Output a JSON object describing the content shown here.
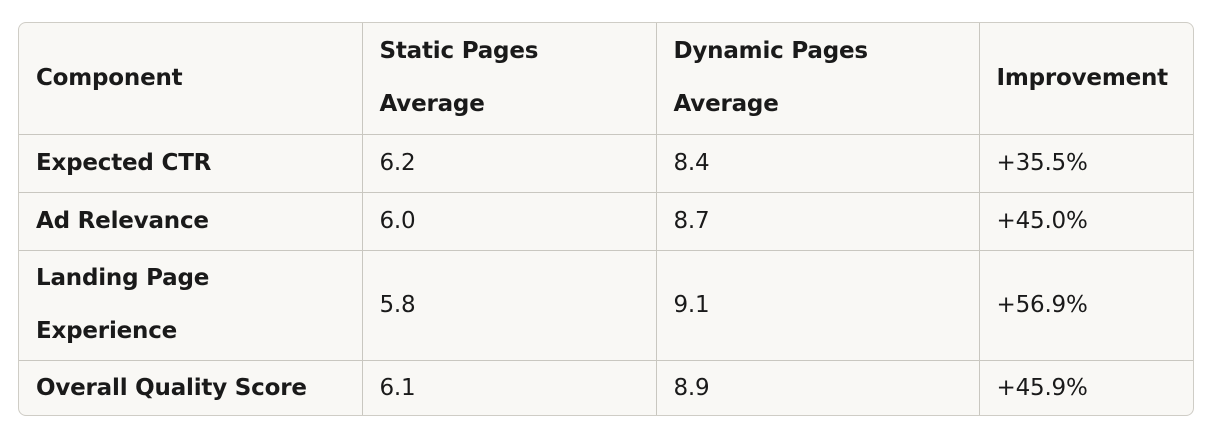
{
  "table": {
    "headers": [
      "Component",
      "Static Pages Average",
      "Dynamic Pages Average",
      "Improvement"
    ],
    "rows": [
      {
        "component": "Expected CTR",
        "static": "6.2",
        "dynamic": "8.4",
        "improvement": "+35.5%"
      },
      {
        "component": "Ad Relevance",
        "static": "6.0",
        "dynamic": "8.7",
        "improvement": "+45.0%"
      },
      {
        "component": "Landing Page Experience",
        "static": "5.8",
        "dynamic": "9.1",
        "improvement": "+56.9%"
      },
      {
        "component": "Overall Quality Score",
        "static": "6.1",
        "dynamic": "8.9",
        "improvement": "+45.9%"
      }
    ]
  }
}
